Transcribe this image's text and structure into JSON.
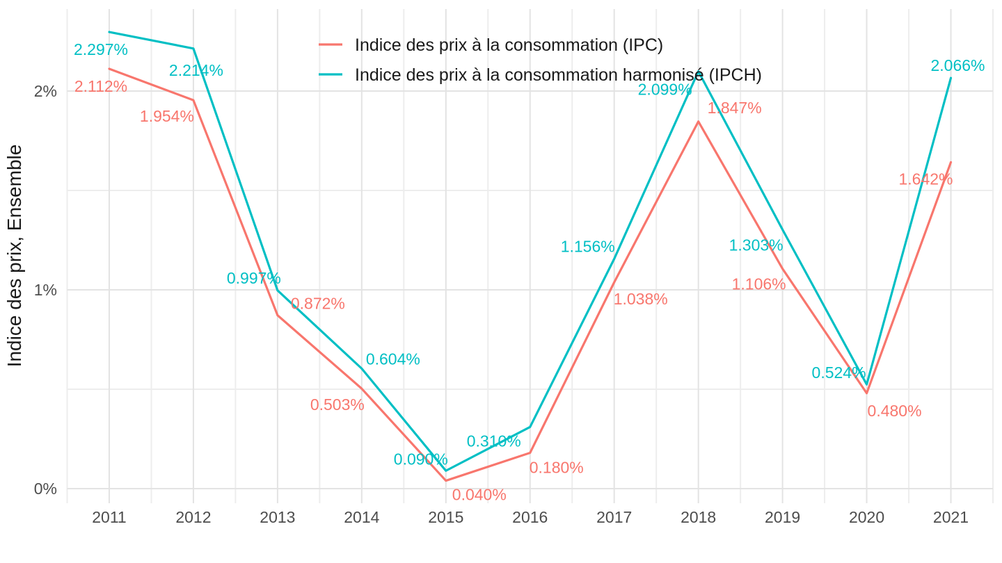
{
  "chart_data": {
    "type": "line",
    "title": "",
    "xlabel": "",
    "ylabel": "Indice des prix, Ensemble",
    "categories": [
      "2011",
      "2012",
      "2013",
      "2014",
      "2015",
      "2016",
      "2017",
      "2018",
      "2019",
      "2020",
      "2021"
    ],
    "series": [
      {
        "name": "Indice des prix à la consommation (IPC)",
        "color": "#F8766D",
        "values": [
          2.112,
          1.954,
          0.872,
          0.503,
          0.04,
          0.18,
          1.038,
          1.847,
          1.106,
          0.48,
          1.642
        ],
        "point_labels": [
          "2.112%",
          "1.954%",
          "0.872%",
          "0.503%",
          "0.040%",
          "0.180%",
          "1.038%",
          "1.847%",
          "1.106%",
          "0.480%",
          "1.642%"
        ],
        "label_offsets": [
          [
            -12,
            25
          ],
          [
            -38,
            23
          ],
          [
            58,
            -17
          ],
          [
            -35,
            23
          ],
          [
            48,
            20
          ],
          [
            38,
            21
          ],
          [
            38,
            24
          ],
          [
            52,
            -20
          ],
          [
            -34,
            22
          ],
          [
            40,
            25
          ],
          [
            -36,
            24
          ]
        ]
      },
      {
        "name": "Indice des prix à la consommation harmonisé (IPCH)",
        "color": "#00BFC4",
        "values": [
          2.297,
          2.214,
          0.997,
          0.604,
          0.09,
          0.31,
          1.156,
          2.099,
          1.303,
          0.524,
          2.066
        ],
        "point_labels": [
          "2.297%",
          "2.214%",
          "0.997%",
          "0.604%",
          "0.090%",
          "0.310%",
          "1.156%",
          "2.099%",
          "1.303%",
          "0.524%",
          "2.066%"
        ],
        "label_offsets": [
          [
            -12,
            25
          ],
          [
            4,
            31
          ],
          [
            -34,
            -18
          ],
          [
            45,
            -14
          ],
          [
            -36,
            -17
          ],
          [
            -52,
            20
          ],
          [
            -38,
            -18
          ],
          [
            -48,
            26
          ],
          [
            -38,
            22
          ],
          [
            -40,
            -17
          ],
          [
            10,
            -18
          ]
        ]
      }
    ],
    "y_ticks": [
      {
        "value": 0,
        "label": "0%"
      },
      {
        "value": 1,
        "label": "1%"
      },
      {
        "value": 2,
        "label": "2%"
      }
    ],
    "y_minor": [
      0.5,
      1.5
    ],
    "ylim": [
      -0.073,
      2.413
    ],
    "grid": true,
    "legend_position": "top-center",
    "colors": {
      "background": "#FFFFFF",
      "grid_major": "#E3E3E3",
      "grid_minor": "#EDEDED",
      "axis_text": "#4d4d4d",
      "title_text": "#1a1a1a"
    }
  }
}
